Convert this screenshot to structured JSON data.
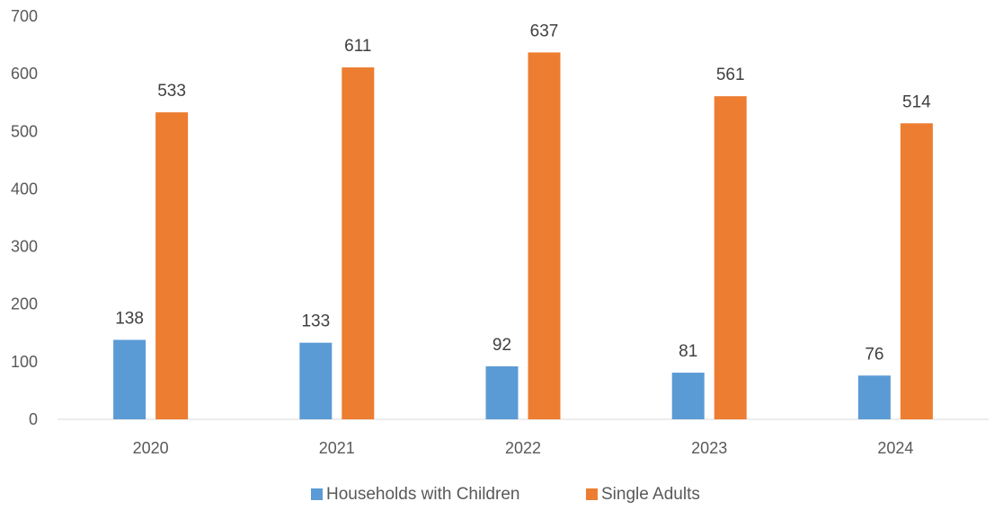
{
  "chart_data": {
    "type": "bar",
    "categories": [
      "2020",
      "2021",
      "2022",
      "2023",
      "2024"
    ],
    "series": [
      {
        "name": "Households with Children",
        "values": [
          138,
          133,
          92,
          81,
          76
        ],
        "color": "#5B9BD5"
      },
      {
        "name": "Single Adults",
        "values": [
          533,
          611,
          637,
          561,
          514
        ],
        "color": "#ED7D31"
      }
    ],
    "ylim": [
      0,
      700
    ],
    "yticks": [
      0,
      100,
      200,
      300,
      400,
      500,
      600,
      700
    ],
    "grid": false,
    "legend_position": "bottom",
    "data_labels": true
  }
}
